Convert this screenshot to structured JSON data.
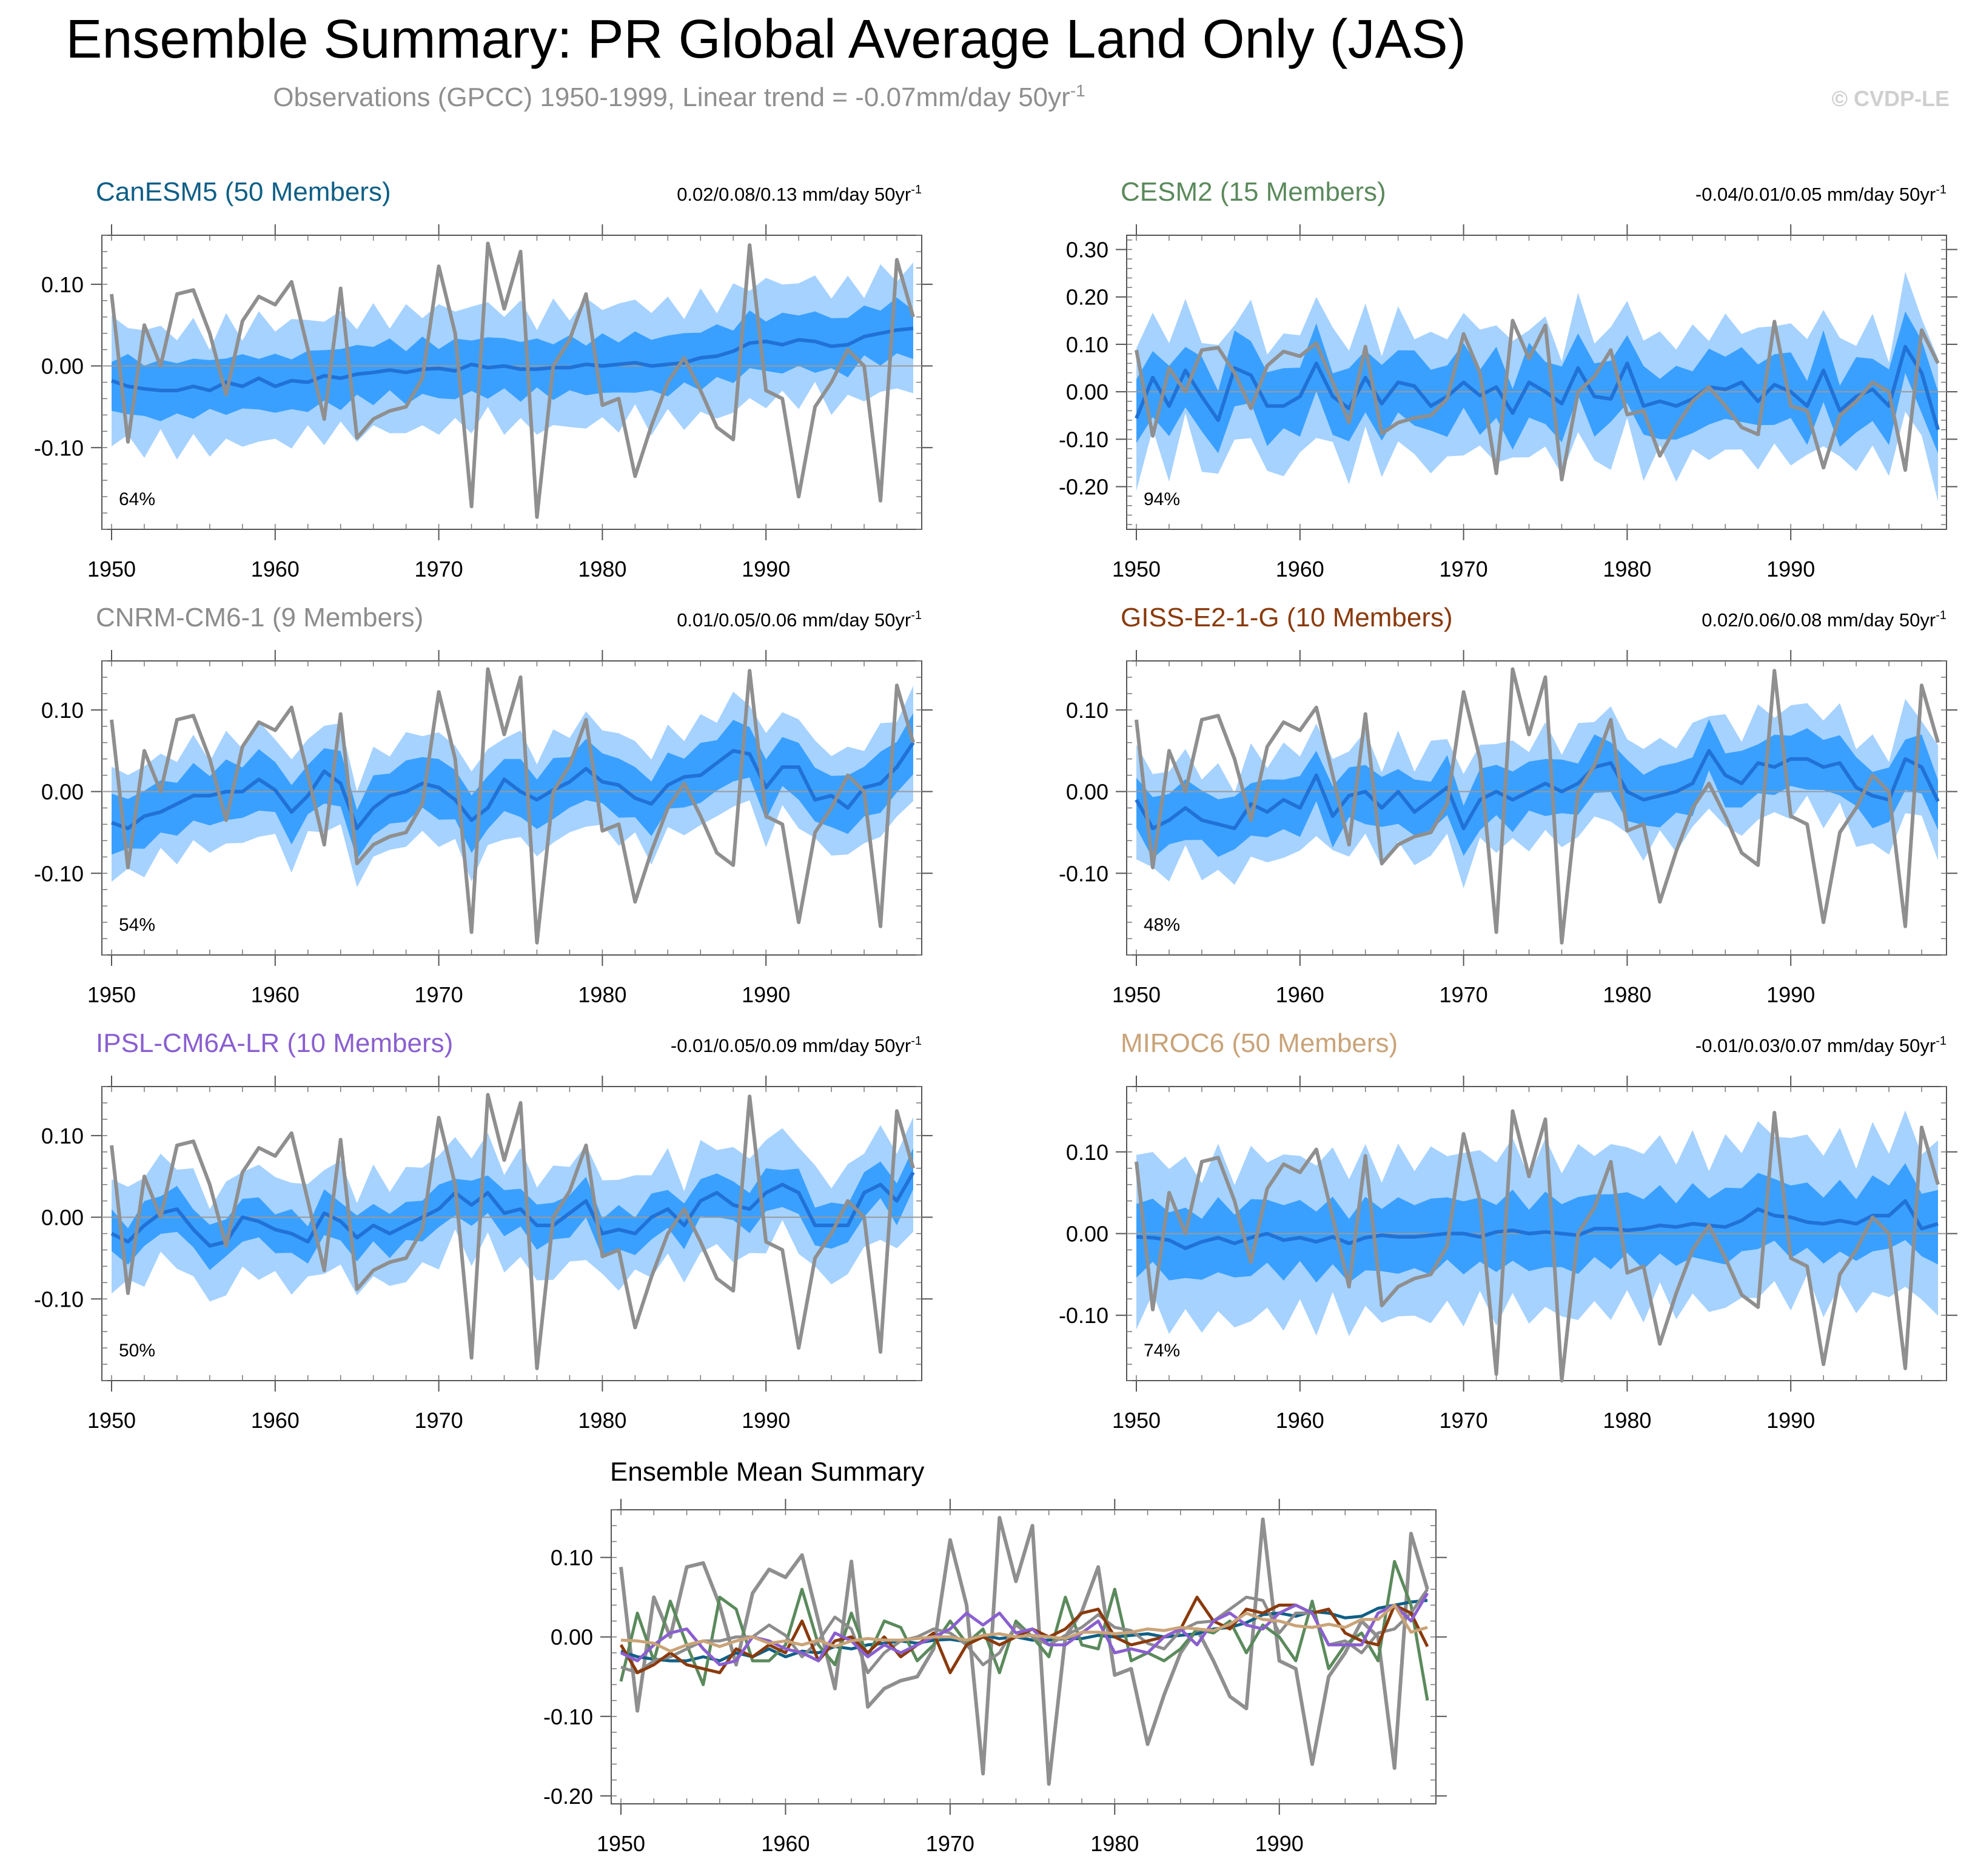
{
  "title": "Ensemble Summary: PR Global Average Land Only (JAS)",
  "subtitle": "Observations (GPCC) 1950-1999, Linear trend = -0.07mm/day 50yr",
  "subtitle_sup": "-1",
  "copyright": "© CVDP-LE",
  "colors": {
    "obs": "#8f8f8f",
    "inner_band": "#3aa0ff",
    "outer_band": "#a6d2ff",
    "mean_line": "#2172d6",
    "zero_line": "#9a9a9a"
  },
  "chart_data": {
    "type": "line",
    "years": [
      1950,
      1951,
      1952,
      1953,
      1954,
      1955,
      1956,
      1957,
      1958,
      1959,
      1960,
      1961,
      1962,
      1963,
      1964,
      1965,
      1966,
      1967,
      1968,
      1969,
      1970,
      1971,
      1972,
      1973,
      1974,
      1975,
      1976,
      1977,
      1978,
      1979,
      1980,
      1981,
      1982,
      1983,
      1984,
      1985,
      1986,
      1987,
      1988,
      1989,
      1990,
      1991,
      1992,
      1993,
      1994,
      1995,
      1996,
      1997,
      1998,
      1999
    ],
    "xticks": [
      1950,
      1960,
      1970,
      1980,
      1990
    ],
    "observations": {
      "name": "Observations (GPCC)",
      "values": [
        0.088,
        -0.093,
        0.05,
        0.0,
        0.088,
        0.093,
        0.04,
        -0.035,
        0.055,
        0.085,
        0.075,
        0.103,
        0.02,
        -0.065,
        0.095,
        -0.088,
        -0.065,
        -0.055,
        -0.05,
        -0.015,
        0.122,
        0.04,
        -0.172,
        0.15,
        0.07,
        0.14,
        -0.185,
        0.0,
        0.032,
        0.088,
        -0.048,
        -0.04,
        -0.135,
        -0.073,
        -0.02,
        0.01,
        -0.03,
        -0.075,
        -0.09,
        0.148,
        -0.03,
        -0.04,
        -0.16,
        -0.05,
        -0.02,
        0.02,
        0.0,
        -0.165,
        0.13,
        0.06
      ]
    },
    "panels": [
      {
        "name": "CanESM5 (50 Members)",
        "color": "#0f5f86",
        "trend_text": "0.02/0.08/0.13 mm/day 50yr",
        "trend_sup": "-1",
        "percent": "64%",
        "ylim": [
          -0.2,
          0.16
        ],
        "yticks": [
          -0.1,
          0.0,
          0.1
        ],
        "yticklabels": [
          "-0.10",
          "0.00",
          "0.10"
        ],
        "mean": [
          -0.018,
          -0.025,
          -0.028,
          -0.03,
          -0.03,
          -0.025,
          -0.03,
          -0.02,
          -0.025,
          -0.015,
          -0.025,
          -0.018,
          -0.02,
          -0.012,
          -0.015,
          -0.01,
          -0.008,
          -0.005,
          -0.008,
          -0.004,
          -0.003,
          -0.006,
          0.002,
          -0.002,
          0.0,
          -0.004,
          -0.004,
          -0.002,
          -0.002,
          0.002,
          0.0,
          0.002,
          0.004,
          0.0,
          0.002,
          0.004,
          0.01,
          0.012,
          0.018,
          0.028,
          0.03,
          0.026,
          0.032,
          0.03,
          0.024,
          0.026,
          0.036,
          0.04,
          0.044,
          0.046
        ],
        "inner_spread": 0.04,
        "outer_spread": 0.085
      },
      {
        "name": "CESM2 (15 Members)",
        "color": "#5b8a5c",
        "trend_text": "-0.04/0.01/0.05 mm/day 50yr",
        "trend_sup": "-1",
        "percent": "94%",
        "ylim": [
          -0.29,
          0.33
        ],
        "yticks": [
          -0.2,
          -0.1,
          0.0,
          0.1,
          0.2,
          0.3
        ],
        "yticklabels": [
          "-0.20",
          "-0.10",
          "0.00",
          "0.10",
          "0.20",
          "0.30"
        ],
        "mean": [
          -0.056,
          0.03,
          -0.03,
          0.045,
          -0.01,
          -0.06,
          0.05,
          0.035,
          -0.03,
          -0.03,
          -0.01,
          0.06,
          -0.01,
          -0.035,
          0.03,
          -0.025,
          0.02,
          0.012,
          -0.03,
          -0.01,
          0.02,
          -0.008,
          0.01,
          -0.045,
          0.02,
          0.0,
          -0.025,
          0.05,
          -0.01,
          -0.015,
          0.06,
          -0.03,
          -0.02,
          -0.03,
          -0.015,
          0.01,
          0.005,
          0.02,
          -0.02,
          0.015,
          0.0,
          -0.03,
          0.045,
          -0.04,
          -0.01,
          0.005,
          -0.03,
          0.095,
          0.04,
          -0.08
        ],
        "inner_spread": 0.085,
        "outer_spread": 0.16
      },
      {
        "name": "CNRM-CM6-1 (9 Members)",
        "color": "#8c8c8c",
        "trend_text": "0.01/0.05/0.06 mm/day 50yr",
        "trend_sup": "-1",
        "percent": "54%",
        "ylim": [
          -0.2,
          0.16
        ],
        "yticks": [
          -0.1,
          0.0,
          0.1
        ],
        "yticklabels": [
          "-0.10",
          "0.00",
          "0.10"
        ],
        "mean": [
          -0.038,
          -0.045,
          -0.03,
          -0.025,
          -0.015,
          -0.005,
          -0.005,
          0.0,
          0.0,
          0.015,
          0.002,
          -0.025,
          -0.005,
          0.025,
          0.01,
          -0.045,
          -0.02,
          -0.005,
          0.0,
          0.01,
          0.005,
          -0.01,
          -0.035,
          -0.02,
          0.015,
          0.0,
          -0.01,
          0.002,
          0.012,
          0.028,
          0.012,
          0.008,
          -0.008,
          -0.015,
          0.008,
          0.018,
          0.02,
          0.035,
          0.05,
          0.046,
          0.005,
          0.03,
          0.03,
          -0.01,
          -0.005,
          -0.02,
          0.005,
          0.01,
          0.03,
          0.06
        ],
        "inner_spread": 0.04,
        "outer_spread": 0.075
      },
      {
        "name": "GISS-E2-1-G (10 Members)",
        "color": "#8a3a0c",
        "trend_text": "0.02/0.06/0.08 mm/day 50yr",
        "trend_sup": "-1",
        "percent": "48%",
        "ylim": [
          -0.2,
          0.16
        ],
        "yticks": [
          -0.1,
          0.0,
          0.1
        ],
        "yticklabels": [
          "-0.10",
          "0.00",
          "0.10"
        ],
        "mean": [
          -0.01,
          -0.045,
          -0.035,
          -0.02,
          -0.035,
          -0.04,
          -0.045,
          -0.015,
          -0.025,
          -0.01,
          -0.02,
          0.02,
          -0.03,
          -0.005,
          0.0,
          -0.02,
          0.0,
          -0.025,
          -0.01,
          0.005,
          -0.045,
          -0.01,
          0.0,
          -0.01,
          0.0,
          0.01,
          0.0,
          0.01,
          0.03,
          0.035,
          0.0,
          -0.01,
          -0.005,
          0.0,
          0.01,
          0.05,
          0.02,
          0.01,
          0.035,
          0.03,
          0.04,
          0.04,
          0.03,
          0.035,
          0.005,
          -0.005,
          -0.01,
          0.04,
          0.03,
          -0.012
        ],
        "inner_spread": 0.04,
        "outer_spread": 0.075
      },
      {
        "name": "IPSL-CM6A-LR (10 Members)",
        "color": "#8a5fd0",
        "trend_text": "-0.01/0.05/0.09 mm/day 50yr",
        "trend_sup": "-1",
        "percent": "50%",
        "ylim": [
          -0.2,
          0.16
        ],
        "yticks": [
          -0.1,
          0.0,
          0.1
        ],
        "yticklabels": [
          "-0.10",
          "0.00",
          "0.10"
        ],
        "mean": [
          -0.02,
          -0.03,
          -0.01,
          0.005,
          0.01,
          -0.015,
          -0.035,
          -0.03,
          0.0,
          -0.005,
          -0.015,
          -0.02,
          -0.03,
          0.005,
          -0.005,
          -0.025,
          -0.01,
          -0.02,
          -0.01,
          0.0,
          0.01,
          0.03,
          0.015,
          0.03,
          0.005,
          0.01,
          -0.01,
          -0.01,
          0.005,
          0.02,
          -0.02,
          -0.015,
          -0.02,
          0.0,
          0.01,
          -0.01,
          0.02,
          0.03,
          0.015,
          0.01,
          0.03,
          0.04,
          0.03,
          -0.01,
          -0.01,
          -0.01,
          0.03,
          0.04,
          0.02,
          0.055
        ],
        "inner_spread": 0.03,
        "outer_spread": 0.075
      },
      {
        "name": "MIROC6 (50 Members)",
        "color": "#c9a378",
        "trend_text": "-0.01/0.03/0.07 mm/day 50yr",
        "trend_sup": "-1",
        "percent": "74%",
        "ylim": [
          -0.18,
          0.18
        ],
        "yticks": [
          -0.1,
          0.0,
          0.1
        ],
        "yticklabels": [
          "-0.10",
          "0.00",
          "0.10"
        ],
        "mean": [
          -0.004,
          -0.005,
          -0.008,
          -0.018,
          -0.01,
          -0.005,
          -0.012,
          -0.005,
          0.0,
          -0.008,
          -0.005,
          -0.01,
          -0.004,
          -0.012,
          -0.005,
          -0.002,
          -0.004,
          -0.004,
          -0.002,
          0.0,
          0.0,
          -0.004,
          0.002,
          0.004,
          0.0,
          0.002,
          0.0,
          -0.002,
          0.006,
          0.006,
          0.004,
          0.006,
          0.01,
          0.008,
          0.012,
          0.01,
          0.008,
          0.016,
          0.03,
          0.022,
          0.02,
          0.014,
          0.012,
          0.016,
          0.012,
          0.022,
          0.022,
          0.04,
          0.006,
          0.012
        ],
        "inner_spread": 0.05,
        "outer_spread": 0.115
      }
    ],
    "summary": {
      "title": "Ensemble Mean Summary",
      "ylim": [
        -0.21,
        0.16
      ],
      "yticks": [
        -0.2,
        -0.1,
        0.0,
        0.1
      ],
      "yticklabels": [
        "-0.20",
        "-0.10",
        "0.00",
        "0.10"
      ]
    }
  }
}
